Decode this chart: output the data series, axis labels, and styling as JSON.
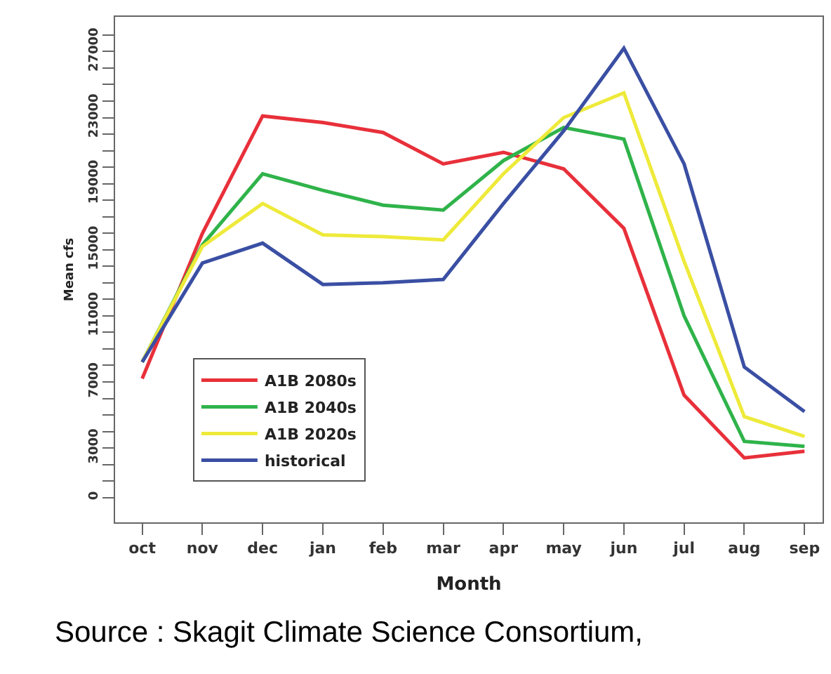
{
  "chart_data": {
    "type": "line",
    "xlabel": "Month",
    "ylabel": "Mean cfs",
    "categories": [
      "oct",
      "nov",
      "dec",
      "jan",
      "feb",
      "mar",
      "apr",
      "may",
      "jun",
      "jul",
      "aug",
      "sep"
    ],
    "series": [
      {
        "name": "A1B 2080s",
        "color": "#e8303a",
        "values": [
          7200,
          16000,
          23100,
          22700,
          22100,
          20200,
          20900,
          19900,
          16300,
          6200,
          2400,
          2800
        ]
      },
      {
        "name": "A1B 2040s",
        "color": "#2fb34a",
        "values": [
          8200,
          15300,
          19600,
          18600,
          17700,
          17400,
          20400,
          22400,
          21700,
          11000,
          3400,
          3100
        ]
      },
      {
        "name": "A1B 2020s",
        "color": "#eeea3a",
        "values": [
          8200,
          15200,
          17800,
          15900,
          15800,
          15600,
          19600,
          23000,
          24500,
          14300,
          4900,
          3700
        ]
      },
      {
        "name": "historical",
        "color": "#3a4fa3",
        "values": [
          8200,
          14200,
          15400,
          12900,
          13000,
          13200,
          17800,
          22200,
          27200,
          20200,
          7900,
          5200
        ]
      }
    ],
    "ylim": [
      -1500,
      29100
    ],
    "yticks": [
      0,
      {
        "value": 1000,
        "label": null
      },
      {
        "value": 2000,
        "label": null
      },
      3000,
      {
        "value": 4000,
        "label": null
      },
      {
        "value": 5000,
        "label": null
      },
      {
        "value": 6000,
        "label": null
      },
      7000,
      {
        "value": 8000,
        "label": null
      },
      {
        "value": 9000,
        "label": null
      },
      {
        "value": 10000,
        "label": null
      },
      11000,
      {
        "value": 12000,
        "label": null
      },
      {
        "value": 13000,
        "label": null
      },
      {
        "value": 14000,
        "label": null
      },
      15000,
      {
        "value": 16000,
        "label": null
      },
      {
        "value": 17000,
        "label": null
      },
      {
        "value": 18000,
        "label": null
      },
      19000,
      {
        "value": 20000,
        "label": null
      },
      {
        "value": 21000,
        "label": null
      },
      {
        "value": 22000,
        "label": null
      },
      23000,
      {
        "value": 24000,
        "label": null
      },
      {
        "value": 25000,
        "label": null
      },
      {
        "value": 26000,
        "label": null
      },
      27000,
      {
        "value": 28000,
        "label": null
      }
    ],
    "legend": "bottom left",
    "marker": "none",
    "line_style": "solid",
    "annotations": [
      "Source : Skagit Climate Science Consortium,"
    ]
  }
}
